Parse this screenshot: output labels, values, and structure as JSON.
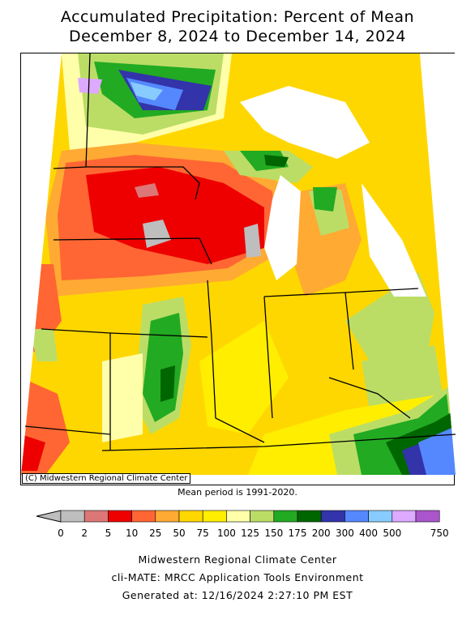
{
  "title_line1": "Accumulated Precipitation: Percent of Mean",
  "title_line2": "December 8, 2024 to December 14, 2024",
  "map_credit": "(C) Midwestern Regional Climate Center",
  "mean_period_note": "Mean period is 1991-2020.",
  "legend": {
    "ticks": [
      "0",
      "2",
      "5",
      "10",
      "25",
      "50",
      "75",
      "100",
      "125",
      "150",
      "175",
      "200",
      "300",
      "400",
      "500",
      "750"
    ],
    "colors": [
      "#bebebe",
      "#dd7777",
      "#ee0000",
      "#ff6633",
      "#ffaa33",
      "#ffd700",
      "#ffee00",
      "#ffffaa",
      "#bbdd66",
      "#22aa22",
      "#006600",
      "#3333aa",
      "#5588ff",
      "#88ccff",
      "#ddaaff",
      "#aa55cc"
    ]
  },
  "footer": {
    "line1": "Midwestern Regional Climate Center",
    "line2": "cli-MATE: MRCC Application Tools Environment",
    "line3": "Generated at: 12/16/2024 2:27:10 PM EST"
  }
}
